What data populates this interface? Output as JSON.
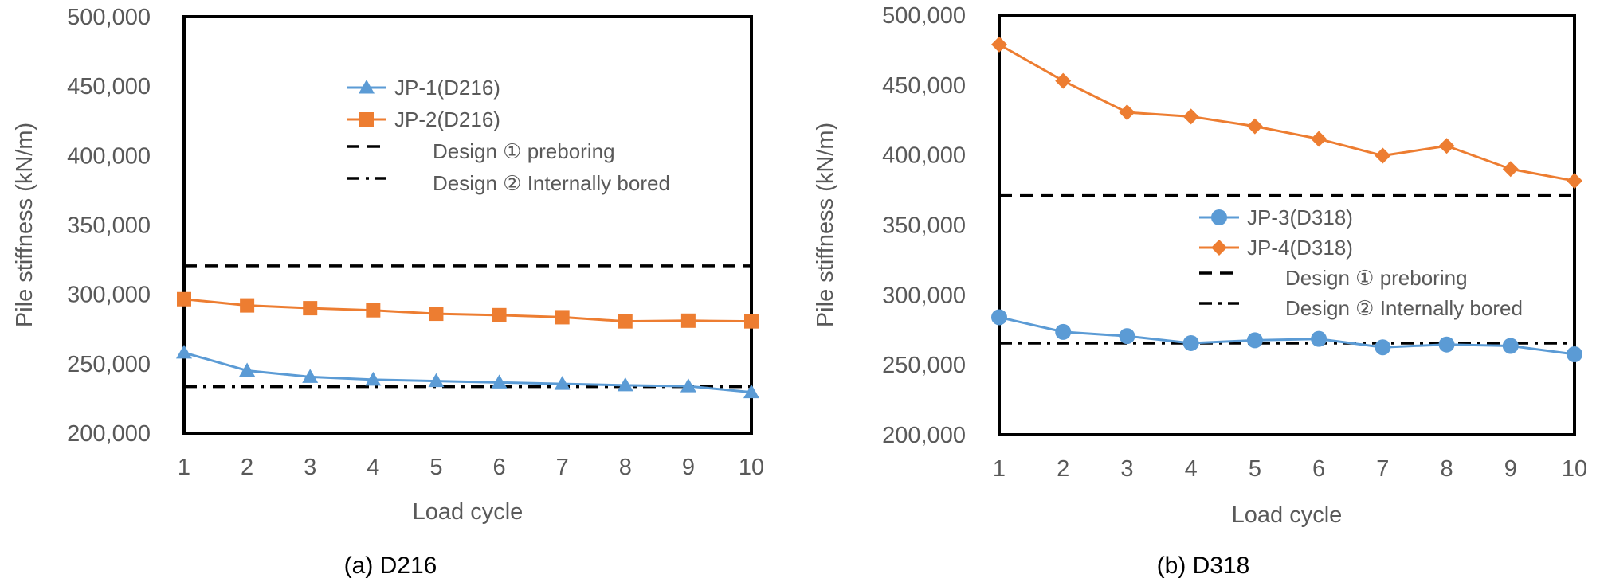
{
  "chart_data": [
    {
      "type": "line",
      "caption": "(a)  D216",
      "xlabel": "Load cycle",
      "ylabel": "Pile stiffness (kN/m)",
      "x": [
        1,
        2,
        3,
        4,
        5,
        6,
        7,
        8,
        9,
        10
      ],
      "xticks": [
        "1",
        "2",
        "3",
        "4",
        "5",
        "6",
        "7",
        "8",
        "9",
        "10"
      ],
      "ylim": [
        200000,
        500000
      ],
      "yticks": [
        "200,000",
        "250,000",
        "300,000",
        "350,000",
        "400,000",
        "450,000",
        "500,000"
      ],
      "legend_position": "top-center",
      "series": [
        {
          "name": "JP-1(D216)",
          "color": "#5B9BD5",
          "marker": "triangle",
          "values": [
            258000,
            245000,
            240500,
            238500,
            237500,
            236500,
            235500,
            234500,
            233800,
            229500
          ]
        },
        {
          "name": "JP-2(D216)",
          "color": "#ED7D31",
          "marker": "square",
          "values": [
            296500,
            292000,
            290000,
            288500,
            286000,
            285000,
            283500,
            280500,
            281000,
            280500
          ]
        }
      ],
      "reference_lines": [
        {
          "name": "Design ① preboring",
          "value": 320500,
          "style": "dashed",
          "color": "#000000"
        },
        {
          "name": "Design ② Internally bored",
          "value": 233500,
          "style": "dash-dot",
          "color": "#000000"
        }
      ]
    },
    {
      "type": "line",
      "caption": "(b)  D318",
      "xlabel": "Load cycle",
      "ylabel": "Pile stiffness (kN/m)",
      "x": [
        1,
        2,
        3,
        4,
        5,
        6,
        7,
        8,
        9,
        10
      ],
      "xticks": [
        "1",
        "2",
        "3",
        "4",
        "5",
        "6",
        "7",
        "8",
        "9",
        "10"
      ],
      "ylim": [
        200000,
        500000
      ],
      "yticks": [
        "200,000",
        "250,000",
        "300,000",
        "350,000",
        "400,000",
        "450,000",
        "500,000"
      ],
      "legend_position": "center-right",
      "series": [
        {
          "name": "JP-3(D318)",
          "color": "#5B9BD5",
          "marker": "circle",
          "values": [
            284000,
            273500,
            270500,
            265500,
            267500,
            268500,
            262500,
            264500,
            263500,
            257500
          ]
        },
        {
          "name": "JP-4(D318)",
          "color": "#ED7D31",
          "marker": "diamond",
          "values": [
            479000,
            453000,
            430500,
            427500,
            420500,
            411500,
            399500,
            406500,
            390000,
            381500
          ]
        }
      ],
      "reference_lines": [
        {
          "name": "Design ① preboring",
          "value": 371000,
          "style": "dashed",
          "color": "#000000"
        },
        {
          "name": "Design ② Internally bored",
          "value": 265500,
          "style": "dash-dot",
          "color": "#000000"
        }
      ]
    }
  ]
}
